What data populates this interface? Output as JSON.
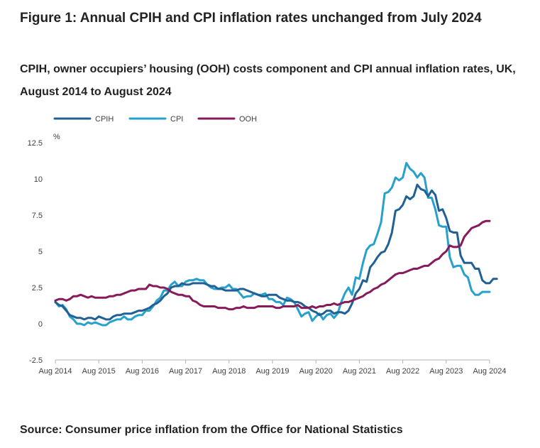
{
  "title": "Figure 1: Annual CPIH and CPI inflation rates unchanged from July 2024",
  "subtitle": "CPIH, owner occupiers’ housing (OOH) costs component and CPI annual inflation rates, UK, August 2014 to August 2024",
  "source": "Source: Consumer price inflation from the Office for National Statistics",
  "chart_data": {
    "type": "line",
    "title": "Figure 1: Annual CPIH and CPI inflation rates unchanged from July 2024",
    "subtitle": "CPIH, owner occupiers’ housing (OOH) costs component and CPI annual inflation rates, UK, August 2014 to August 2024",
    "xlabel": "",
    "ylabel": "%",
    "ylim": [
      -2.5,
      12.5
    ],
    "yticks": [
      "-2.5",
      "0",
      "2.5",
      "5",
      "7.5",
      "10",
      "12.5"
    ],
    "x_start": "Aug 2014",
    "x_end": "Aug 2024",
    "num_points": 121,
    "xticks": [
      "Aug 2014",
      "Aug 2015",
      "Aug 2016",
      "Aug 2017",
      "Aug 2018",
      "Aug 2019",
      "Aug 2020",
      "Aug 2021",
      "Aug 2022",
      "Aug 2023",
      "Aug 2024"
    ],
    "legend_position": "top-left",
    "grid": false,
    "series": [
      {
        "name": "CPIH",
        "color": "#206095",
        "values": [
          1.5,
          1.3,
          1.2,
          0.9,
          0.6,
          0.5,
          0.4,
          0.4,
          0.3,
          0.4,
          0.4,
          0.3,
          0.5,
          0.4,
          0.3,
          0.3,
          0.5,
          0.6,
          0.6,
          0.7,
          0.7,
          0.7,
          0.8,
          0.9,
          0.9,
          1.0,
          1.1,
          1.3,
          1.4,
          1.6,
          1.9,
          2.1,
          2.5,
          2.6,
          2.6,
          2.8,
          2.7,
          2.7,
          2.8,
          2.8,
          2.8,
          2.8,
          2.7,
          2.6,
          2.6,
          2.4,
          2.4,
          2.3,
          2.3,
          2.3,
          2.3,
          2.4,
          2.4,
          2.3,
          2.2,
          2.1,
          2.0,
          1.9,
          1.9,
          2.0,
          2.0,
          2.0,
          1.8,
          1.7,
          1.6,
          1.6,
          1.5,
          1.5,
          1.4,
          1.2,
          1.1,
          0.9,
          0.8,
          0.6,
          0.7,
          0.9,
          0.9,
          0.7,
          0.8,
          0.8,
          0.7,
          0.9,
          1.4,
          2.1,
          2.4,
          3.0,
          2.9,
          3.9,
          4.2,
          4.6,
          4.9,
          5.0,
          5.5,
          6.3,
          7.8,
          7.9,
          8.2,
          8.8,
          8.6,
          8.8,
          9.6,
          9.3,
          9.2,
          8.8,
          9.2,
          8.9,
          7.8,
          7.9,
          7.3,
          6.4,
          6.3,
          6.3,
          4.7,
          4.2,
          4.2,
          4.2,
          3.8,
          3.8,
          3.0,
          2.8,
          2.8,
          3.1,
          3.1
        ]
      },
      {
        "name": "CPI",
        "color": "#27a0cc",
        "values": [
          1.5,
          1.2,
          1.3,
          1.0,
          0.5,
          0.3,
          0.0,
          0.0,
          -0.1,
          0.1,
          0.0,
          0.1,
          0.0,
          -0.1,
          -0.1,
          0.1,
          0.2,
          0.3,
          0.3,
          0.5,
          0.3,
          0.3,
          0.5,
          0.6,
          0.6,
          0.9,
          0.9,
          1.2,
          1.6,
          1.8,
          2.3,
          2.3,
          2.7,
          2.9,
          2.6,
          2.6,
          2.9,
          3.0,
          3.0,
          3.1,
          3.0,
          3.0,
          2.7,
          2.5,
          2.4,
          2.4,
          2.5,
          2.5,
          2.7,
          2.4,
          2.4,
          2.1,
          1.8,
          1.9,
          1.9,
          2.1,
          2.0,
          2.0,
          2.1,
          1.7,
          1.7,
          1.5,
          1.5,
          1.3,
          1.8,
          1.7,
          1.5,
          1.0,
          0.5,
          0.7,
          0.8,
          0.2,
          0.5,
          0.7,
          0.3,
          0.6,
          0.7,
          0.4,
          0.7,
          1.5,
          2.1,
          2.5,
          2.0,
          3.2,
          3.1,
          4.2,
          5.1,
          5.4,
          5.5,
          6.2,
          7.0,
          9.0,
          9.1,
          9.4,
          10.1,
          9.9,
          10.1,
          11.1,
          10.7,
          10.5,
          10.1,
          10.4,
          10.1,
          8.7,
          8.7,
          7.9,
          6.8,
          6.7,
          6.7,
          4.6,
          3.9,
          4.0,
          4.0,
          3.4,
          3.2,
          2.3,
          2.0,
          2.0,
          2.2,
          2.2,
          2.2
        ]
      },
      {
        "name": "OOH",
        "color": "#871a5b",
        "values": [
          1.6,
          1.7,
          1.7,
          1.6,
          1.7,
          1.9,
          1.9,
          2.0,
          1.9,
          1.8,
          1.9,
          1.8,
          1.8,
          1.8,
          1.8,
          1.9,
          1.9,
          2.0,
          2.0,
          2.1,
          2.2,
          2.3,
          2.3,
          2.4,
          2.4,
          2.4,
          2.7,
          2.6,
          2.6,
          2.5,
          2.5,
          2.4,
          2.2,
          2.1,
          2.0,
          2.0,
          1.9,
          1.9,
          1.6,
          1.5,
          1.3,
          1.2,
          1.2,
          1.2,
          1.2,
          1.1,
          1.1,
          1.1,
          1.0,
          1.0,
          1.1,
          1.1,
          1.2,
          1.1,
          1.1,
          1.1,
          1.2,
          1.2,
          1.2,
          1.2,
          1.2,
          1.1,
          1.1,
          1.2,
          1.2,
          1.2,
          1.2,
          1.3,
          1.1,
          1.1,
          1.1,
          1.2,
          1.1,
          1.2,
          1.2,
          1.3,
          1.3,
          1.4,
          1.3,
          1.4,
          1.5,
          1.5,
          1.6,
          1.7,
          1.8,
          1.9,
          2.1,
          2.2,
          2.4,
          2.5,
          2.7,
          2.8,
          3.0,
          3.2,
          3.4,
          3.5,
          3.5,
          3.6,
          3.7,
          3.8,
          3.8,
          3.9,
          4.0,
          4.0,
          4.2,
          4.4,
          4.5,
          4.8,
          5.0,
          5.4,
          5.3,
          5.3,
          5.4,
          6.0,
          6.3,
          6.6,
          6.7,
          6.8,
          7.0,
          7.1,
          7.1
        ]
      }
    ]
  }
}
